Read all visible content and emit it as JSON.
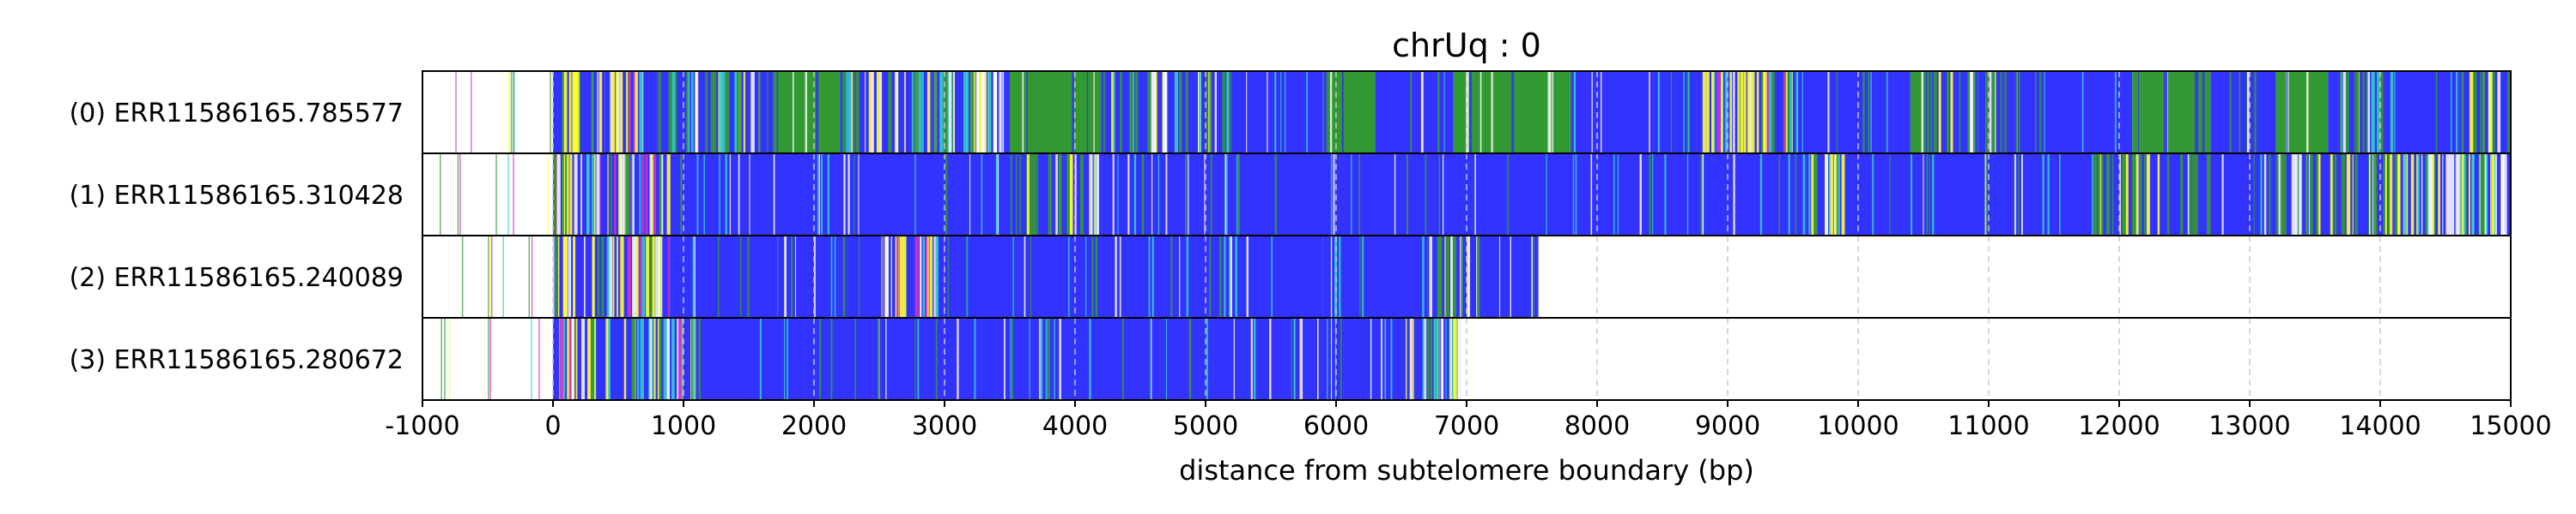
{
  "chart_data": {
    "type": "heatmap",
    "title": "chrUq : 0",
    "xlabel": "distance from subtelomere boundary (bp)",
    "ylabel": "",
    "xlim": [
      -1000,
      15000
    ],
    "xticks": [
      -1000,
      0,
      1000,
      2000,
      3000,
      4000,
      5000,
      6000,
      7000,
      8000,
      9000,
      10000,
      11000,
      12000,
      13000,
      14000,
      15000
    ],
    "xtick_labels": [
      "-1000",
      "0",
      "1000",
      "2000",
      "3000",
      "4000",
      "5000",
      "6000",
      "7000",
      "8000",
      "9000",
      "10000",
      "11000",
      "12000",
      "13000",
      "14000",
      "15000"
    ],
    "grid": "vertical dashed",
    "colors": {
      "blue": "#3333ff",
      "green": "#339933",
      "yellow": "#ffff33",
      "magenta": "#cc33cc",
      "cyan": "#33cccc",
      "white": "#ffffff",
      "grid": "#c8c8c8"
    },
    "reads": [
      {
        "label": "(0) ERR11586165.785577",
        "end": 15000,
        "segments": [
          [
            0,
            400,
            "mixed"
          ],
          [
            400,
            800,
            "yellow-mixed"
          ],
          [
            800,
            1700,
            "mixed"
          ],
          [
            1700,
            2200,
            "green"
          ],
          [
            2200,
            2900,
            "mixed"
          ],
          [
            2900,
            3500,
            "white-mixed"
          ],
          [
            3500,
            4200,
            "green"
          ],
          [
            4200,
            5200,
            "mixed"
          ],
          [
            5200,
            5900,
            "blue"
          ],
          [
            5900,
            6300,
            "green"
          ],
          [
            6300,
            6900,
            "blue"
          ],
          [
            6900,
            7800,
            "green"
          ],
          [
            7800,
            8800,
            "blue"
          ],
          [
            8800,
            9500,
            "yellow-mixed"
          ],
          [
            9500,
            10400,
            "blue"
          ],
          [
            10400,
            10500,
            "green"
          ],
          [
            10500,
            11200,
            "green-mixed"
          ],
          [
            11200,
            12100,
            "blue"
          ],
          [
            12100,
            12700,
            "green"
          ],
          [
            12700,
            13200,
            "blue"
          ],
          [
            13200,
            13600,
            "green"
          ],
          [
            13600,
            14100,
            "mixed"
          ],
          [
            14100,
            14600,
            "blue"
          ],
          [
            14600,
            15000,
            "green-mixed"
          ]
        ]
      },
      {
        "label": "(1) ERR11586165.310428",
        "end": 15000,
        "segments": [
          [
            0,
            900,
            "yellow-mixed"
          ],
          [
            900,
            3500,
            "blue"
          ],
          [
            3500,
            4200,
            "green-mixed"
          ],
          [
            4200,
            9600,
            "blue"
          ],
          [
            9600,
            9900,
            "white-mixed"
          ],
          [
            9900,
            11800,
            "blue"
          ],
          [
            11800,
            12700,
            "green-mixed"
          ],
          [
            12700,
            13200,
            "blue"
          ],
          [
            13200,
            14100,
            "green-mixed"
          ],
          [
            14100,
            15000,
            "white-mixed"
          ]
        ]
      },
      {
        "label": "(2) ERR11586165.240089",
        "end": 7550,
        "segments": [
          [
            0,
            900,
            "yellow-mixed"
          ],
          [
            900,
            2500,
            "blue"
          ],
          [
            2500,
            3000,
            "yellow-mixed"
          ],
          [
            3000,
            5900,
            "blue"
          ],
          [
            5900,
            6700,
            "blue"
          ],
          [
            6700,
            7100,
            "green-mixed"
          ],
          [
            7100,
            7550,
            "blue"
          ]
        ]
      },
      {
        "label": "(3) ERR11586165.280672",
        "end": 6950,
        "segments": [
          [
            0,
            1100,
            "yellow-mixed"
          ],
          [
            1100,
            6500,
            "blue"
          ],
          [
            6500,
            6950,
            "white-mixed"
          ]
        ]
      }
    ]
  }
}
